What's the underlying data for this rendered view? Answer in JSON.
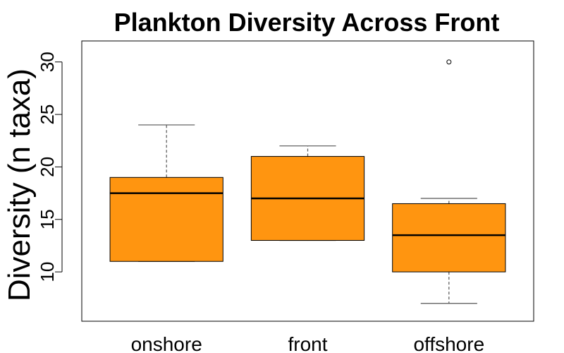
{
  "chart_data": {
    "type": "boxplot",
    "title": "Plankton Diversity Across Front",
    "xlabel": "",
    "ylabel": "Diversity (n taxa)",
    "ylim": [
      5.3,
      32
    ],
    "yticks": [
      10,
      15,
      20,
      25,
      30
    ],
    "categories": [
      "onshore",
      "front",
      "offshore"
    ],
    "boxes": [
      {
        "category": "onshore",
        "whisker_low": 11,
        "q1": 11,
        "median": 17.5,
        "q3": 19,
        "whisker_high": 24,
        "outliers": []
      },
      {
        "category": "front",
        "whisker_low": 13,
        "q1": 13,
        "median": 17,
        "q3": 21,
        "whisker_high": 22,
        "outliers": []
      },
      {
        "category": "offshore",
        "whisker_low": 7,
        "q1": 10,
        "median": 13.5,
        "q3": 16.5,
        "whisker_high": 17,
        "outliers": [
          30
        ]
      }
    ],
    "colors": {
      "box_fill": "#FF9510",
      "outline": "#000000",
      "whisker": "#555555"
    },
    "grid": false
  }
}
